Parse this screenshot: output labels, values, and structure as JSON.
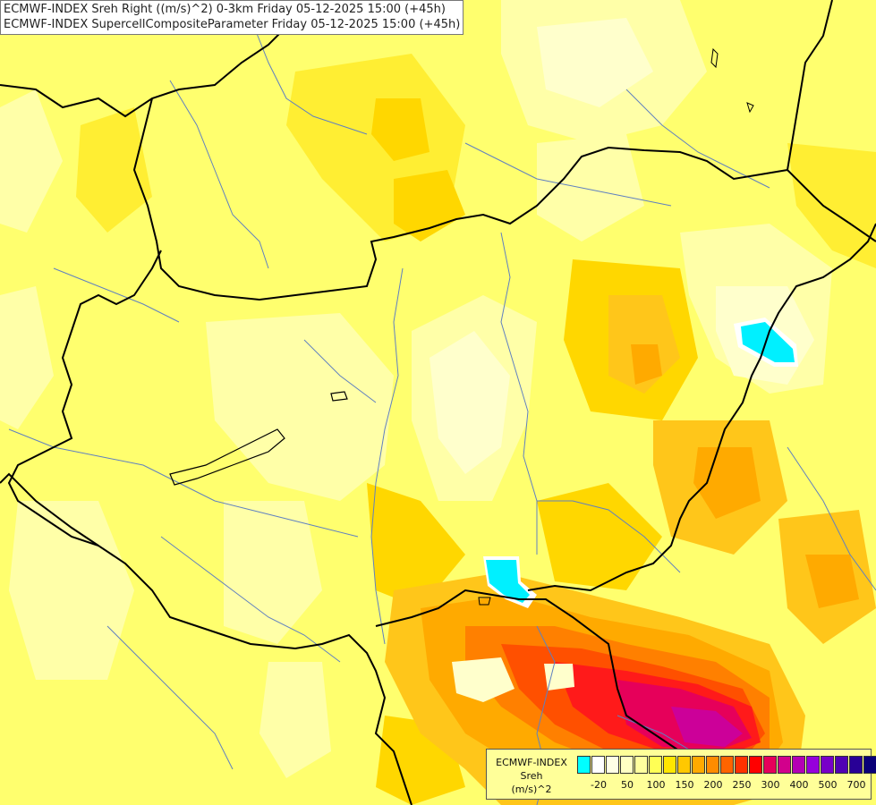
{
  "title_lines": [
    "ECMWF-INDEX Sreh Right ((m/s)^2) 0-3km Friday 05-12-2025 15:00 (+45h)",
    "ECMWF-INDEX SupercellCompositeParameter Friday 05-12-2025 15:00 (+45h)"
  ],
  "legend": {
    "source": "ECMWF-INDEX",
    "variable": "Sreh",
    "unit": "(m/s)^2",
    "colors": [
      "#00ffff",
      "#ffffff",
      "#ffffe6",
      "#ffffc4",
      "#ffff9e",
      "#ffff55",
      "#ffe600",
      "#ffc800",
      "#ffaa00",
      "#ff8c00",
      "#ff6400",
      "#ff3200",
      "#ff0000",
      "#e6005a",
      "#d2008c",
      "#b400b4",
      "#9600dc",
      "#7800c8",
      "#5000b4",
      "#280096",
      "#0a0078"
    ],
    "ticks": [
      {
        "label": "-20",
        "index": 1
      },
      {
        "label": "50",
        "index": 3
      },
      {
        "label": "100",
        "index": 5
      },
      {
        "label": "150",
        "index": 7
      },
      {
        "label": "200",
        "index": 9
      },
      {
        "label": "250",
        "index": 11
      },
      {
        "label": "300",
        "index": 13
      },
      {
        "label": "400",
        "index": 15
      },
      {
        "label": "500",
        "index": 17
      },
      {
        "label": "700",
        "index": 19
      }
    ]
  },
  "map_colors": {
    "base": "#ffff6e",
    "pale": "#ffffa8",
    "very_pale": "#ffffcc",
    "yellow": "#ffee33",
    "gold": "#ffd700",
    "amber": "#ffc61a",
    "orange": "#ffaa00",
    "dark_orange": "#ff8000",
    "red_orange": "#ff5000",
    "red": "#ff1a1a",
    "crimson": "#e6005a",
    "magenta": "#cc0099",
    "cyan": "#00f0ff",
    "border": "#000000",
    "river": "#6080c0"
  }
}
